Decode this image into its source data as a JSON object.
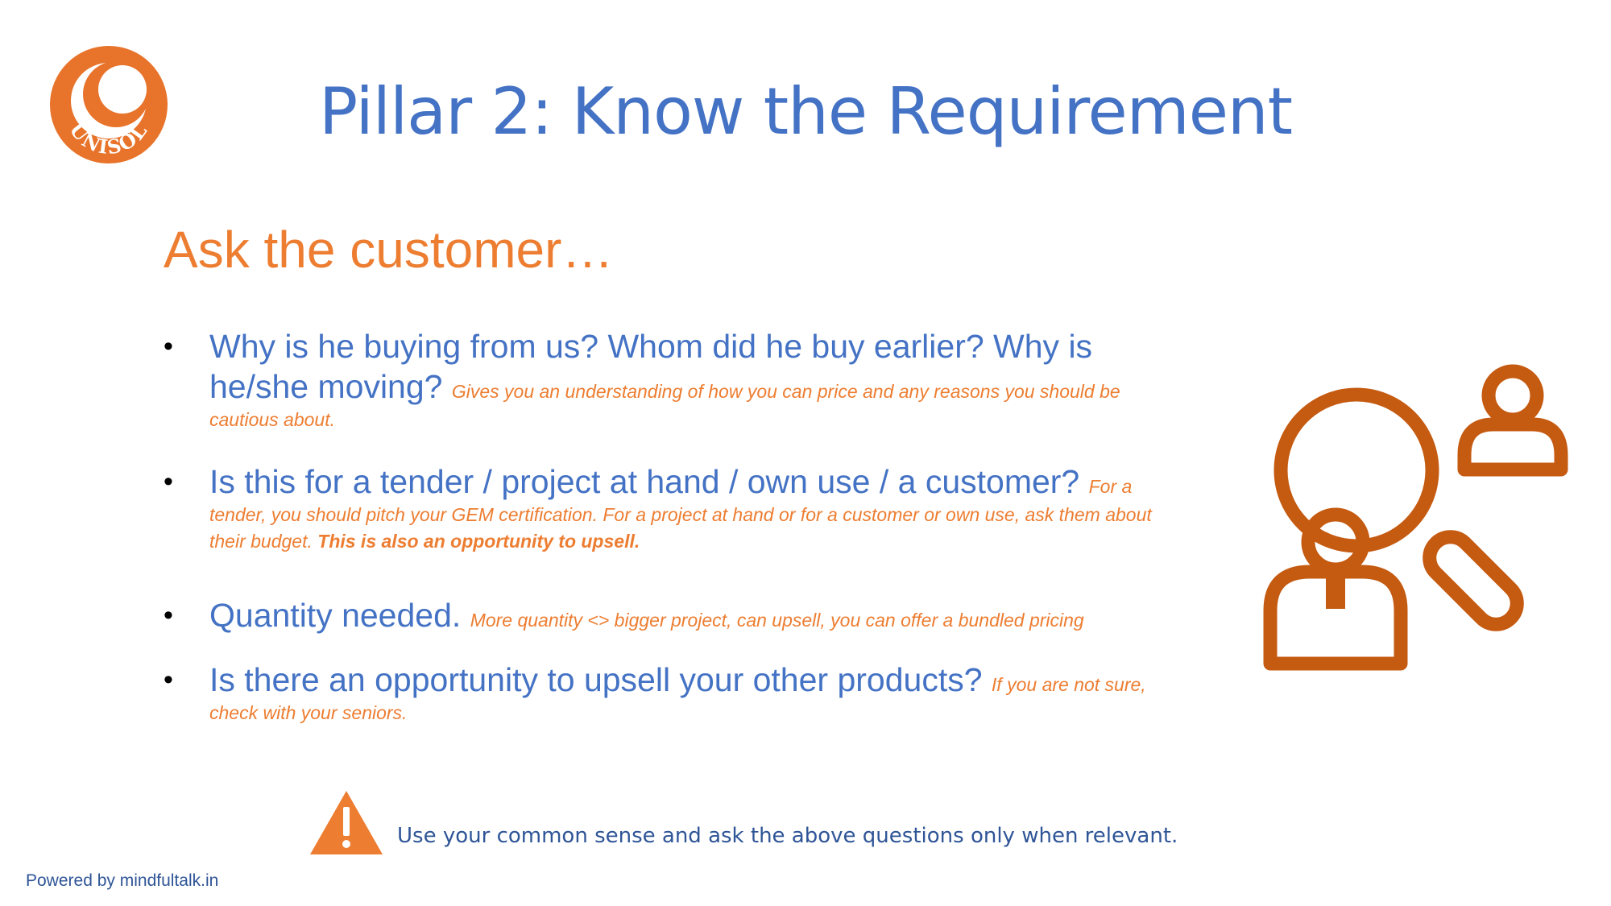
{
  "slide": {
    "title": "Pillar 2: Know the Requirement",
    "subtitle": "Ask the customer…",
    "logo": {
      "icon": "unisol-logo",
      "text": "UNISOL",
      "color": "#e8732a"
    },
    "bullets": [
      {
        "main": "Why is he buying from us? Whom did he buy earlier? Why is he/she moving?",
        "note": "Gives you an understanding of how you can price and any reasons you should be cautious about.",
        "note_bold": ""
      },
      {
        "main": "Is this for a tender / project at hand / own use / a customer?",
        "note": "For a tender, you should pitch your GEM certification. For a project at hand or for a customer or own use, ask them about their budget.",
        "note_bold": "This is also an opportunity to upsell."
      },
      {
        "main": "Quantity needed.",
        "note": "More quantity <> bigger project, can upsell, you can offer a bundled pricing",
        "note_bold": ""
      },
      {
        "main": "Is there an opportunity to upsell your other products?",
        "note": "If you are not sure, check with your seniors.",
        "note_bold": ""
      }
    ],
    "bullet_glyph": "•",
    "illustration": {
      "icon": "user-search-icon",
      "color": "#c55a11"
    },
    "warning": {
      "icon": "warning-icon",
      "text": "Use your common sense and ask the above questions only when relevant.",
      "color": "#ed7d31"
    },
    "footer": "Powered by mindfultalk.in"
  }
}
